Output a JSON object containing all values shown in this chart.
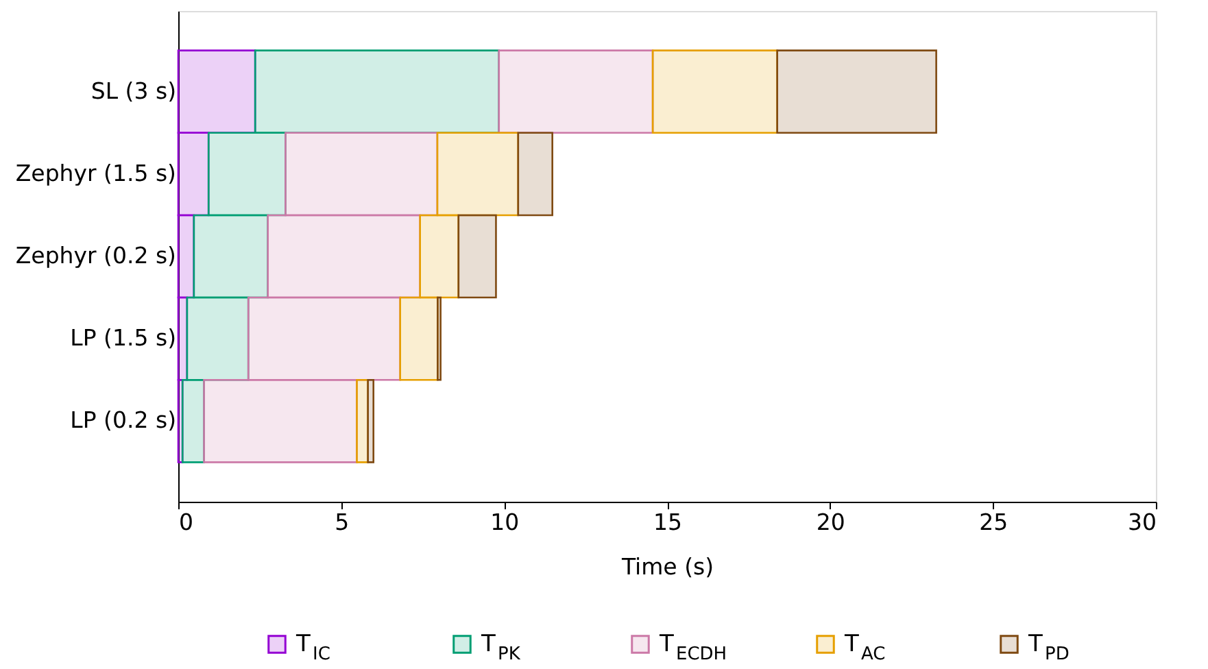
{
  "chart_data": {
    "type": "bar",
    "orientation": "horizontal",
    "stacked": true,
    "xlabel": "Time (s)",
    "categories": [
      "SL (3 s)",
      "Zephyr (1.5 s)",
      "Zephyr (0.2 s)",
      "LP (1.5 s)",
      "LP (0.2 s)"
    ],
    "xlim": [
      0,
      30
    ],
    "xticks": [
      0,
      5,
      10,
      15,
      20,
      25,
      30
    ],
    "legend": "bottom",
    "grid": false,
    "series": [
      {
        "name": "T$_{IC}$",
        "color": "#9400d3",
        "values": [
          2.36,
          0.93,
          0.48,
          0.27,
          0.13
        ]
      },
      {
        "name": "T$_{PK}$",
        "color": "#009e73",
        "values": [
          7.48,
          2.36,
          2.27,
          1.88,
          0.66
        ]
      },
      {
        "name": "T$_{ECDH}$",
        "color": "#cc79a7",
        "values": [
          4.72,
          4.66,
          4.67,
          4.66,
          4.69
        ]
      },
      {
        "name": "T$_{AC}$",
        "color": "#e69f00",
        "values": [
          3.82,
          2.48,
          1.18,
          1.15,
          0.34
        ]
      },
      {
        "name": "T$_{PD}$",
        "color": "#7f4a12",
        "values": [
          4.88,
          1.05,
          1.15,
          0.09,
          0.17
        ]
      }
    ]
  }
}
